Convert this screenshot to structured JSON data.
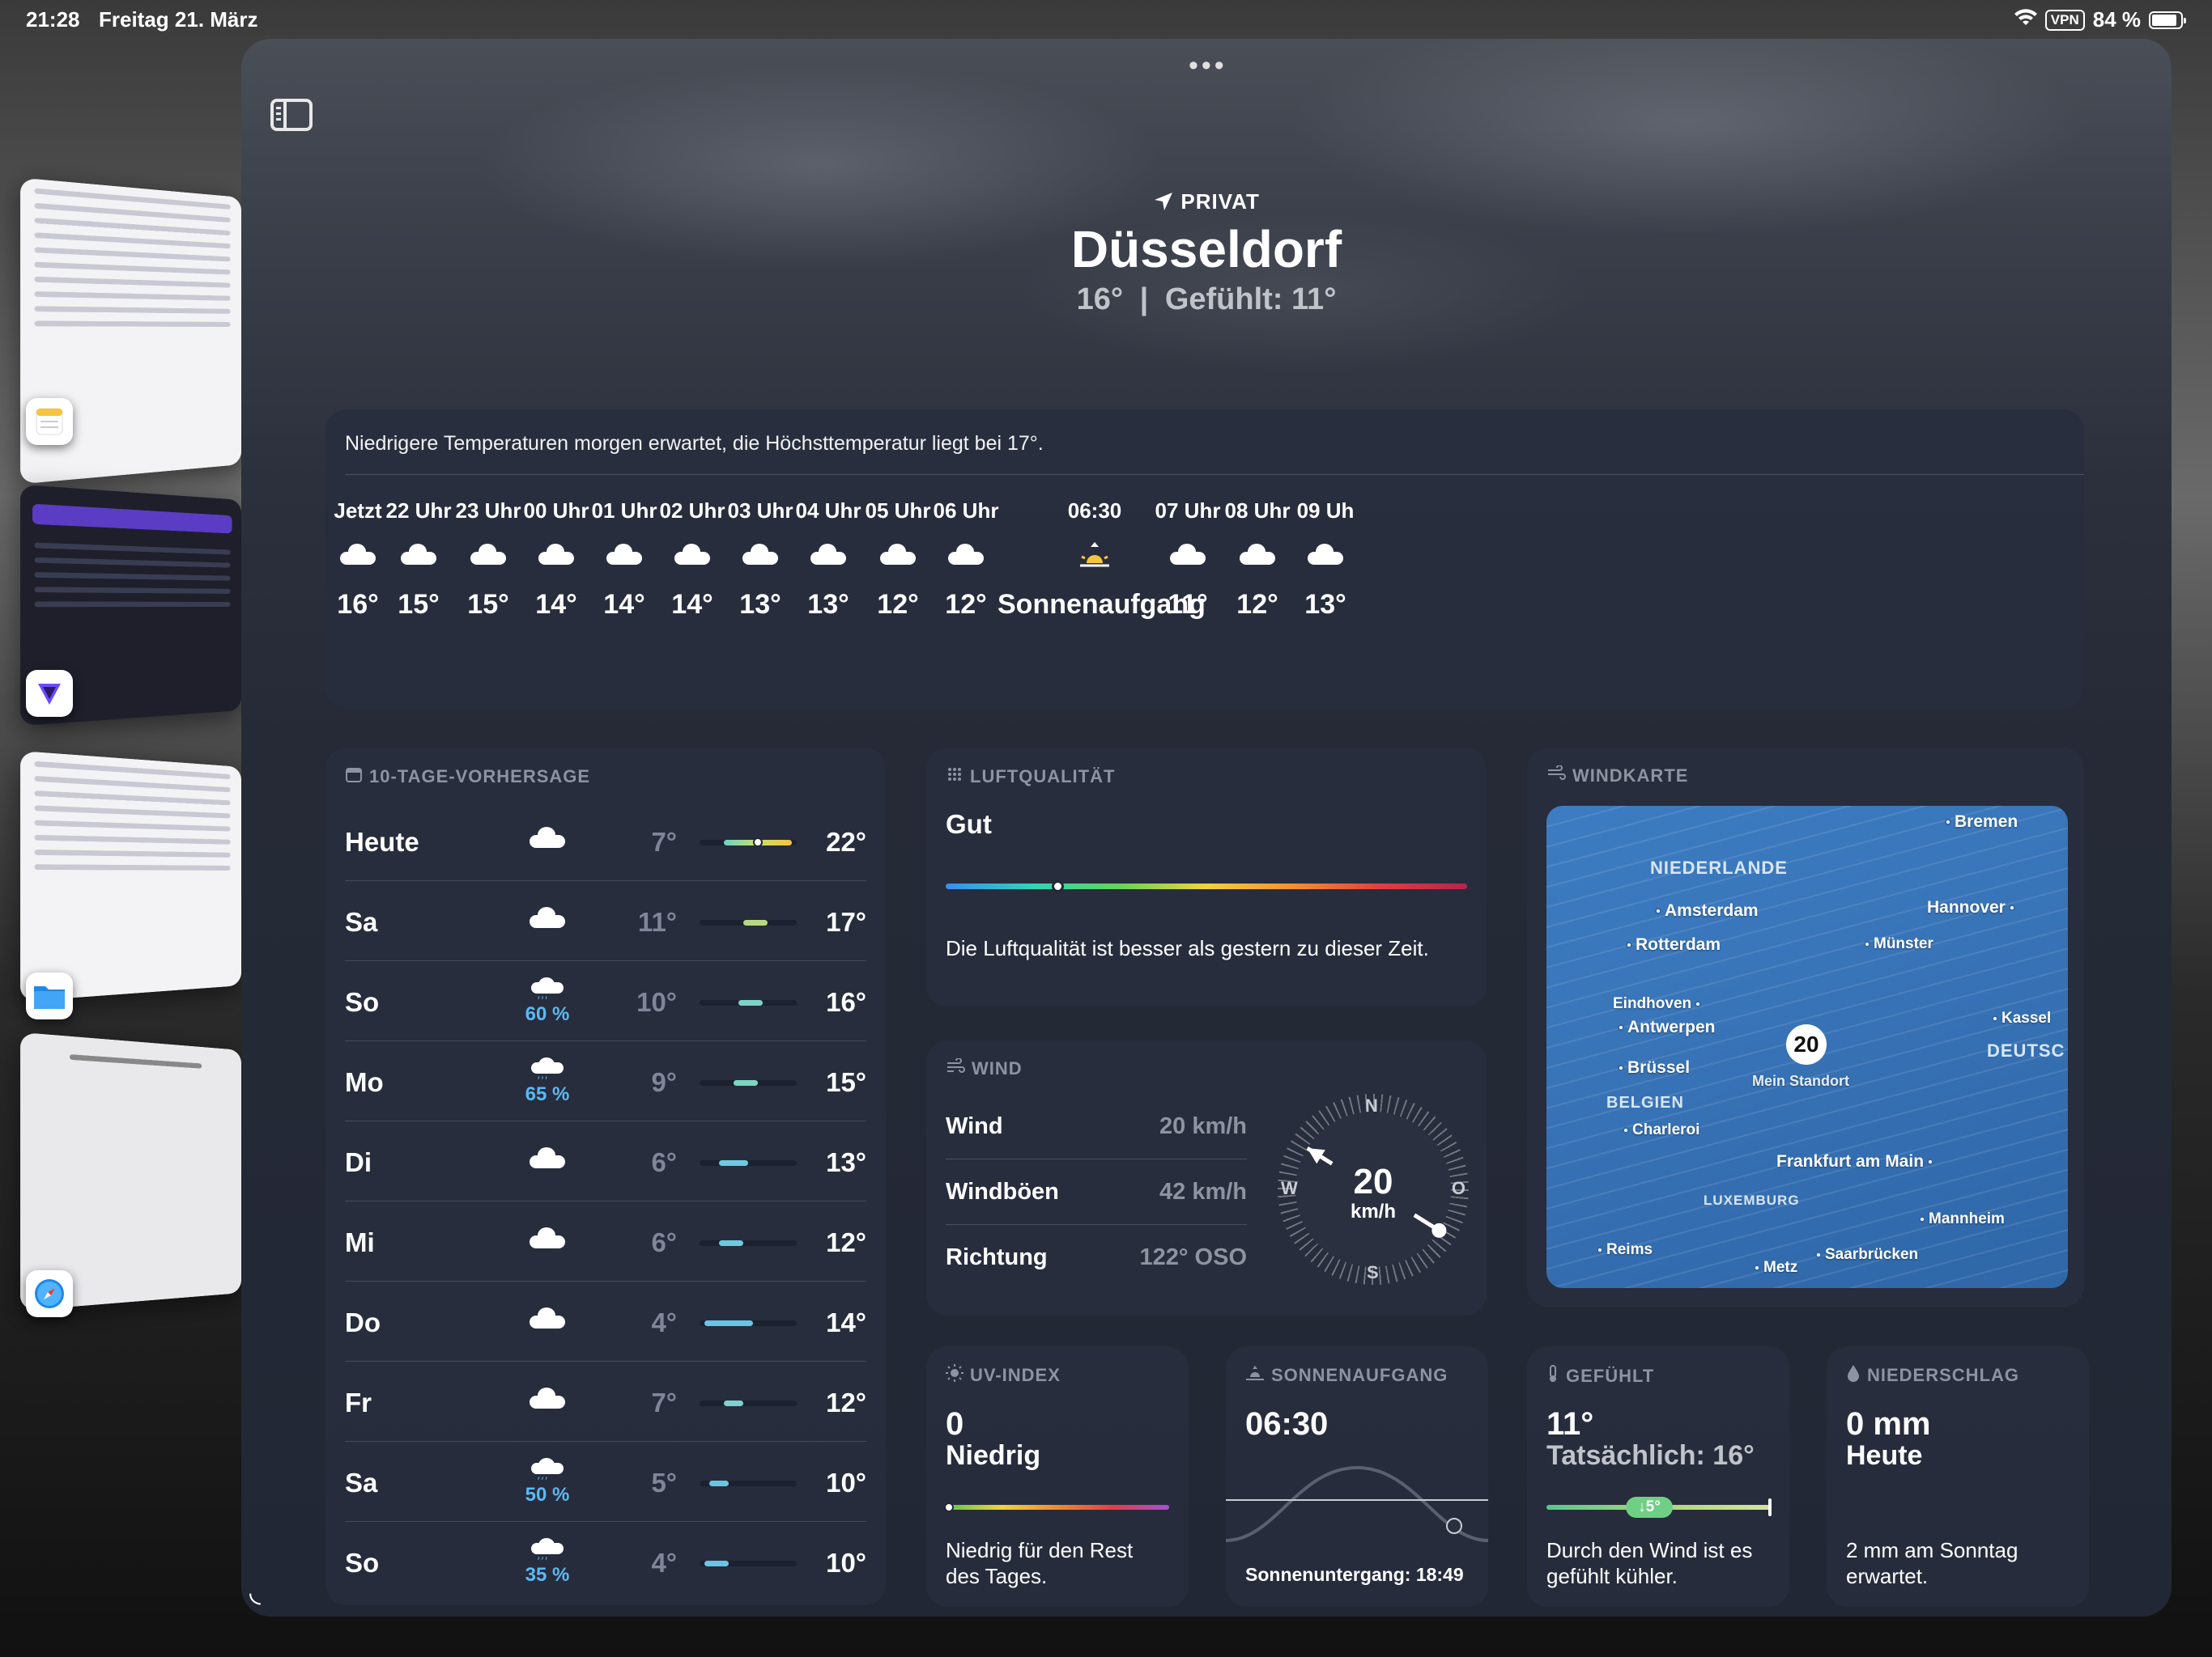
{
  "status_bar": {
    "time": "21:28",
    "date": "Freitag 21. März",
    "vpn": "VPN",
    "battery": "84 %"
  },
  "header": {
    "location_type": "PRIVAT",
    "city": "Düsseldorf",
    "current_temp": "16°",
    "separator": "|",
    "feels_like": "Gefühlt: 11°"
  },
  "hourly": {
    "summary": "Niedrigere Temperaturen morgen erwartet, die Höchsttemperatur liegt bei 17°.",
    "items": [
      {
        "label": "Jetzt",
        "icon": "cloud-icon",
        "temp": "16°"
      },
      {
        "label": "22 Uhr",
        "icon": "cloud-icon",
        "temp": "15°"
      },
      {
        "label": "23 Uhr",
        "icon": "cloud-icon",
        "temp": "15°"
      },
      {
        "label": "00 Uhr",
        "icon": "cloud-icon",
        "temp": "14°"
      },
      {
        "label": "01 Uhr",
        "icon": "cloud-icon",
        "temp": "14°"
      },
      {
        "label": "02 Uhr",
        "icon": "cloud-icon",
        "temp": "14°"
      },
      {
        "label": "03 Uhr",
        "icon": "cloud-icon",
        "temp": "13°"
      },
      {
        "label": "04 Uhr",
        "icon": "cloud-icon",
        "temp": "13°"
      },
      {
        "label": "05 Uhr",
        "icon": "cloud-icon",
        "temp": "12°"
      },
      {
        "label": "06 Uhr",
        "icon": "cloud-icon",
        "temp": "12°"
      },
      {
        "label": "06:30",
        "icon": "sunrise-icon",
        "temp": "Sonnenaufgang"
      },
      {
        "label": "07 Uhr",
        "icon": "cloud-icon",
        "temp": "11°"
      },
      {
        "label": "08 Uhr",
        "icon": "cloud-icon",
        "temp": "12°"
      },
      {
        "label": "09 Uh",
        "icon": "cloud-icon",
        "temp": "13°"
      }
    ]
  },
  "forecast": {
    "title": "10-TAGE-VORHERSAGE",
    "days": [
      {
        "day": "Heute",
        "icon": "cloud-icon",
        "precip": "",
        "low": "7°",
        "high": "22°",
        "range_start": 0.25,
        "range_end": 0.95,
        "current": 0.6
      },
      {
        "day": "Sa",
        "icon": "cloud-icon",
        "precip": "",
        "low": "11°",
        "high": "17°",
        "range_start": 0.45,
        "range_end": 0.7
      },
      {
        "day": "So",
        "icon": "cloud-rain-icon",
        "precip": "60 %",
        "low": "10°",
        "high": "16°",
        "range_start": 0.4,
        "range_end": 0.65
      },
      {
        "day": "Mo",
        "icon": "cloud-rain-icon",
        "precip": "65 %",
        "low": "9°",
        "high": "15°",
        "range_start": 0.35,
        "range_end": 0.6
      },
      {
        "day": "Di",
        "icon": "cloud-icon",
        "precip": "",
        "low": "6°",
        "high": "13°",
        "range_start": 0.2,
        "range_end": 0.5
      },
      {
        "day": "Mi",
        "icon": "cloud-icon",
        "precip": "",
        "low": "6°",
        "high": "12°",
        "range_start": 0.2,
        "range_end": 0.45
      },
      {
        "day": "Do",
        "icon": "cloud-icon",
        "precip": "",
        "low": "4°",
        "high": "14°",
        "range_start": 0.05,
        "range_end": 0.55
      },
      {
        "day": "Fr",
        "icon": "cloud-icon",
        "precip": "",
        "low": "7°",
        "high": "12°",
        "range_start": 0.25,
        "range_end": 0.45
      },
      {
        "day": "Sa",
        "icon": "cloud-rain-icon",
        "precip": "50 %",
        "low": "5°",
        "high": "10°",
        "range_start": 0.1,
        "range_end": 0.3
      },
      {
        "day": "So",
        "icon": "cloud-rain-icon",
        "precip": "35 %",
        "low": "4°",
        "high": "10°",
        "range_start": 0.05,
        "range_end": 0.3
      }
    ]
  },
  "air_quality": {
    "title": "LUFTQUALITÄT",
    "value": "Gut",
    "description": "Die Luftqualität ist besser als gestern zu dieser Zeit."
  },
  "wind": {
    "title": "WIND",
    "rows": [
      {
        "label": "Wind",
        "value": "20 km/h"
      },
      {
        "label": "Windböen",
        "value": "42 km/h"
      },
      {
        "label": "Richtung",
        "value": "122° OSO"
      }
    ],
    "compass": {
      "n": "N",
      "o": "O",
      "s": "S",
      "w": "W",
      "speed": "20",
      "unit": "km/h",
      "direction_deg": 122
    }
  },
  "wind_map": {
    "title": "WINDKARTE",
    "my_location_speed": "20",
    "my_location_label": "Mein Standort",
    "cities": [
      "Bremen",
      "Amsterdam",
      "Hannover",
      "Rotterdam",
      "Münster",
      "Eindhoven",
      "Antwerpen",
      "Kassel",
      "Brüssel",
      "Charleroi",
      "Frankfurt am Main",
      "Mannheim",
      "Reims",
      "Metz",
      "Saarbrücken"
    ],
    "countries": [
      "NIEDERLANDE",
      "BELGIEN",
      "LUXEMBURG",
      "DEUTSC"
    ]
  },
  "uv": {
    "title": "UV-INDEX",
    "value": "0",
    "level": "Niedrig",
    "description": "Niedrig für den Rest des Tages."
  },
  "sunrise": {
    "title": "SONNENAUFGANG",
    "time": "06:30",
    "sunset": "Sonnenuntergang: 18:49"
  },
  "feels_like": {
    "title": "GEFÜHLT",
    "value": "11°",
    "actual": "Tatsächlich: 16°",
    "delta": "↓5°",
    "description": "Durch den Wind ist es gefühlt kühler."
  },
  "precipitation": {
    "title": "NIEDERSCHLAG",
    "value": "0 mm",
    "period": "Heute",
    "description": "2 mm am Sonntag erwartet."
  },
  "stage_apps": [
    "notes-icon",
    "proton-vpn-icon",
    "files-icon",
    "safari-icon"
  ],
  "colors": {
    "precip_blue": "#5ab9f5",
    "accent_gray": "#8e93a2",
    "sunrise_yellow": "#f6c53d"
  }
}
